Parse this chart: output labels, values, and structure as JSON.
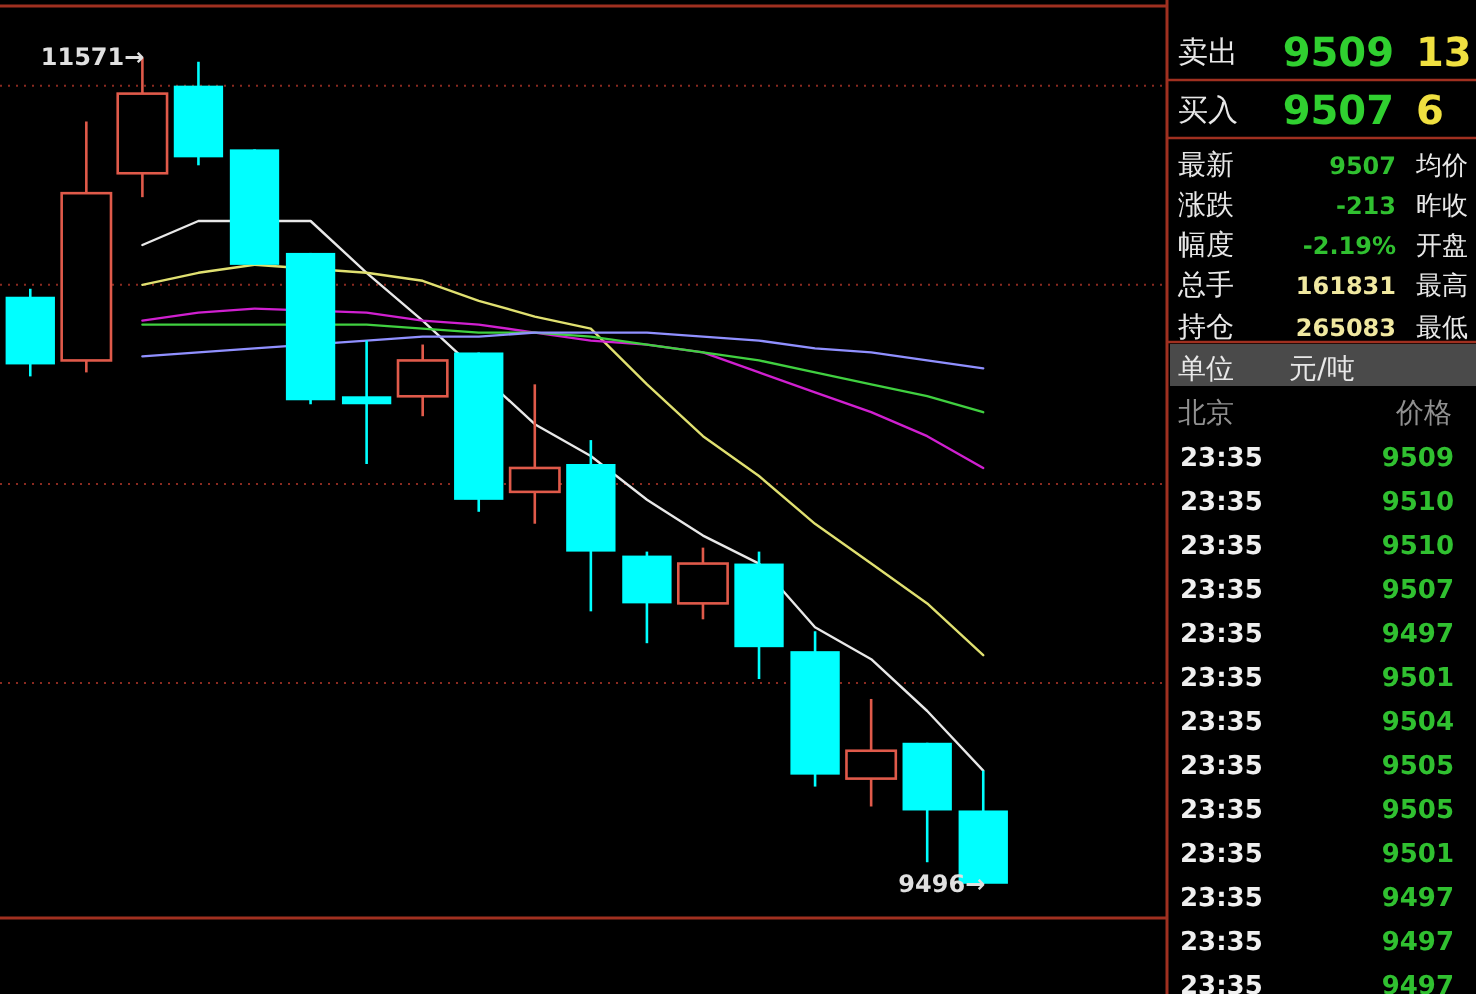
{
  "chart_data": [
    {
      "type": "candlestick",
      "categories": [
        null,
        null,
        null,
        null,
        null,
        null,
        null,
        null,
        null,
        null,
        null,
        null,
        null,
        null,
        null,
        null,
        null,
        null
      ],
      "ohlc": [
        [
          10970,
          10990,
          10770,
          10800
        ],
        [
          10810,
          11410,
          10780,
          11230
        ],
        [
          11280,
          11571,
          11220,
          11480
        ],
        [
          11500,
          11560,
          11300,
          11320
        ],
        [
          11340,
          11340,
          11050,
          11050
        ],
        [
          11080,
          11080,
          10700,
          10710
        ],
        [
          10720,
          10860,
          10550,
          10700
        ],
        [
          10720,
          10850,
          10670,
          10810
        ],
        [
          10830,
          10830,
          10430,
          10460
        ],
        [
          10480,
          10750,
          10400,
          10540
        ],
        [
          10550,
          10610,
          10180,
          10330
        ],
        [
          10320,
          10330,
          10100,
          10200
        ],
        [
          10200,
          10340,
          10160,
          10300
        ],
        [
          10300,
          10330,
          10010,
          10090
        ],
        [
          10080,
          10130,
          9740,
          9770
        ],
        [
          9760,
          9960,
          9690,
          9830
        ],
        [
          9850,
          9850,
          9550,
          9680
        ],
        [
          9680,
          9780,
          9496,
          9496
        ]
      ],
      "colors": [
        "#00ffff",
        "#e05a4a",
        "#e05a4a",
        "#00ffff",
        "#00ffff",
        "#00ffff",
        "#00ffff",
        "#e05a4a",
        "#00ffff",
        "#e05a4a",
        "#00ffff",
        "#00ffff",
        "#e05a4a",
        "#00ffff",
        "#00ffff",
        "#e05a4a",
        "#00ffff",
        "#00ffff"
      ],
      "series": [
        {
          "type": "line",
          "color": "#e8e8e8",
          "values": [
            null,
            null,
            11100,
            11160,
            null,
            11160,
            11030,
            10910,
            null,
            10650,
            10570,
            10460,
            10370,
            10300,
            10140,
            10060,
            9930,
            9780
          ]
        },
        {
          "type": "line",
          "color": "#e0e070",
          "values": [
            null,
            null,
            11000,
            11030,
            11050,
            null,
            11030,
            11010,
            10960,
            10920,
            10890,
            10750,
            10620,
            10520,
            10400,
            10300,
            10200,
            10070
          ]
        },
        {
          "type": "line",
          "color": "#d020d0",
          "values": [
            null,
            null,
            10910,
            10930,
            10940,
            null,
            10930,
            10910,
            10900,
            10880,
            10860,
            10850,
            10830,
            10780,
            10730,
            10680,
            10620,
            10540
          ]
        },
        {
          "type": "line",
          "color": "#40d040",
          "values": [
            null,
            null,
            10900,
            10900,
            10900,
            null,
            10900,
            10890,
            10880,
            10880,
            10870,
            10850,
            10830,
            10810,
            10780,
            10750,
            10720,
            10680
          ]
        },
        {
          "type": "line",
          "color": "#9090ff",
          "values": [
            null,
            null,
            10820,
            10830,
            10840,
            null,
            10860,
            10870,
            10870,
            10880,
            10880,
            10880,
            10870,
            10860,
            10840,
            10830,
            10810,
            10790
          ]
        }
      ],
      "ylim": [
        9410,
        11700
      ],
      "yticks": [
        {
          "value": 10000,
          "label": null
        },
        {
          "value": 10500,
          "label": null
        },
        {
          "value": 11000,
          "label": null
        },
        {
          "value": 11500,
          "label": null
        }
      ],
      "grid": "y",
      "line_style": "solid",
      "marker": "none",
      "annotations": [
        "11571→",
        "9496→"
      ]
    },
    {
      "type": "other",
      "annotations": [
        "卖出",
        "9509",
        "13",
        "买入",
        "9507",
        "6",
        "最新",
        "9507",
        "均价",
        "涨跌",
        "-213",
        "昨收",
        "幅度",
        "-2.19%",
        "开盘",
        "总手",
        "161831",
        "最高",
        "持仓",
        "265083",
        "最低",
        "单位",
        "元/吨",
        "北京",
        "价格",
        "23:35",
        "9509",
        "23:35",
        "9510",
        "23:35",
        "9510",
        "23:35",
        "9507",
        "23:35",
        "9497",
        "23:35",
        "9501",
        "23:35",
        "9504",
        "23:35",
        "9505",
        "23:35",
        "9505",
        "23:35",
        "9501",
        "23:35",
        "9497",
        "23:35",
        "9497",
        "23:35",
        "9497"
      ]
    }
  ]
}
